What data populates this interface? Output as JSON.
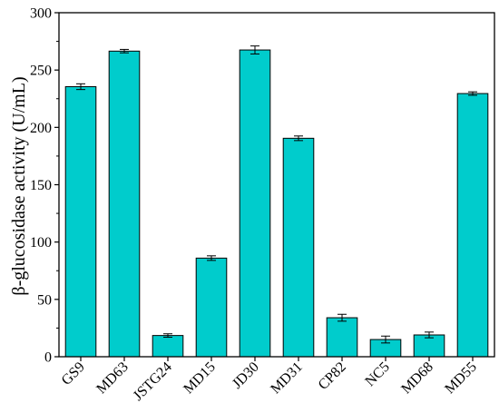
{
  "chart_data": {
    "type": "bar",
    "title": "",
    "xlabel": "",
    "ylabel": "β-glucosidase activity (U/mL)",
    "categories": [
      "GS9",
      "MD63",
      "JSTG24",
      "MD15",
      "JD30",
      "MD31",
      "CP82",
      "NC5",
      "MD68",
      "MD55"
    ],
    "values": [
      235.5,
      266.5,
      18.5,
      86,
      267.5,
      190.5,
      34,
      15,
      19,
      229.5
    ],
    "errors": [
      2.5,
      1.5,
      1.5,
      2,
      3.5,
      2,
      3,
      3,
      2.5,
      1.5
    ],
    "ylim": [
      0,
      300
    ],
    "yticks": [
      "0",
      "50",
      "100",
      "150",
      "200",
      "250",
      "300"
    ],
    "grid": false,
    "bar_color": "#00cccc"
  }
}
